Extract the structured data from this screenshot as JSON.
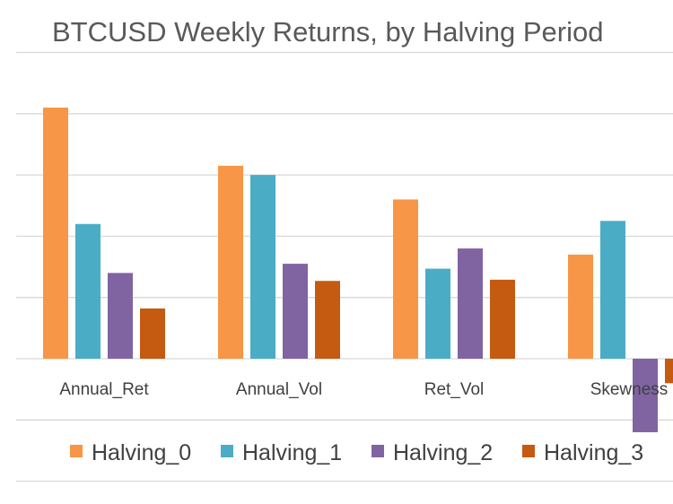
{
  "chart_data": {
    "type": "bar",
    "title": "BTCUSD Weekly Returns, by Halving Period",
    "xlabel": "",
    "ylabel": "",
    "categories": [
      "Annual_Ret",
      "Annual_Vol",
      "Ret_Vol",
      "Skewness"
    ],
    "series": [
      {
        "name": "Halving_0",
        "color": "#f79646",
        "values": [
          4.1,
          3.15,
          2.6,
          1.7
        ]
      },
      {
        "name": "Halving_1",
        "color": "#4bacc6",
        "values": [
          2.2,
          3.0,
          1.47,
          2.25
        ]
      },
      {
        "name": "Halving_2",
        "color": "#8064a2",
        "values": [
          1.4,
          1.55,
          1.8,
          -1.2
        ]
      },
      {
        "name": "Halving_3",
        "color": "#c0504d",
        "values": [
          0.82,
          1.27,
          1.29,
          -0.4
        ]
      }
    ],
    "ylim": [
      -2,
      5
    ],
    "grid": true,
    "legend": "bottom"
  }
}
